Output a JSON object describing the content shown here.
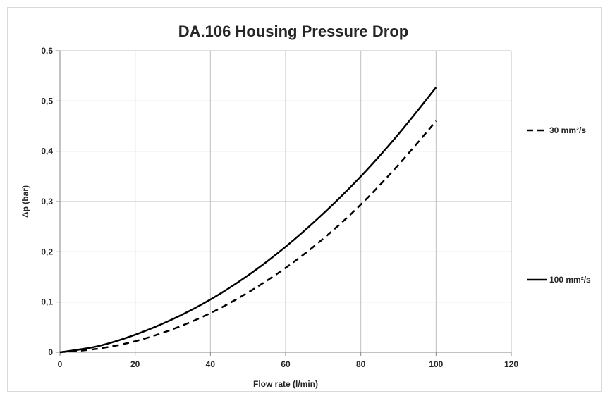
{
  "chart_data": {
    "type": "line",
    "title": "DA.106 Housing Pressure Drop",
    "xlabel": "Flow rate (l/min)",
    "ylabel": "Δp (bar)",
    "xlim": [
      0,
      120
    ],
    "ylim": [
      0,
      0.6
    ],
    "x_ticks": [
      "0",
      "20",
      "40",
      "60",
      "80",
      "100",
      "120"
    ],
    "y_ticks": [
      "0",
      "0,1",
      "0,2",
      "0,3",
      "0,4",
      "0,5",
      "0,6"
    ],
    "grid": true,
    "legend_position": "right",
    "series": [
      {
        "name": "30 mm²/s",
        "style": "dashed",
        "color": "#000000",
        "x": [
          0,
          10,
          20,
          30,
          40,
          50,
          60,
          70,
          80,
          90,
          100
        ],
        "y": [
          0,
          0.007,
          0.022,
          0.046,
          0.078,
          0.119,
          0.168,
          0.226,
          0.294,
          0.373,
          0.46
        ]
      },
      {
        "name": "100 mm²/s",
        "style": "solid",
        "color": "#000000",
        "x": [
          0,
          10,
          20,
          30,
          40,
          50,
          60,
          70,
          80,
          90,
          100
        ],
        "y": [
          0,
          0.012,
          0.035,
          0.066,
          0.105,
          0.153,
          0.21,
          0.276,
          0.35,
          0.434,
          0.527
        ]
      }
    ]
  }
}
